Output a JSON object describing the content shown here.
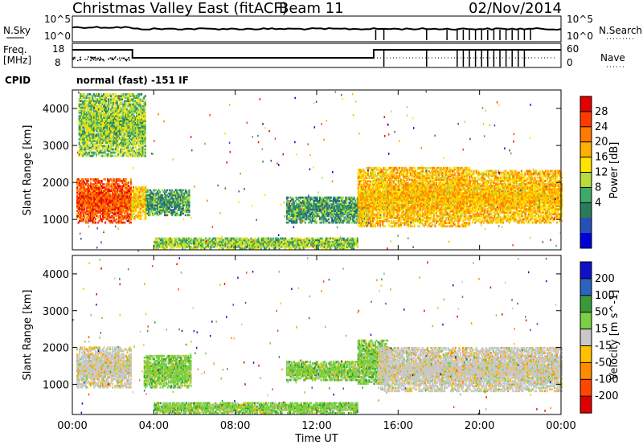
{
  "header": {
    "station": "Christmas Valley East (fitACF)",
    "beam": "Beam 11",
    "date": "02/Nov/2014"
  },
  "panels": {
    "nsky": {
      "label": "N.Sky",
      "tick_hi": "10^5",
      "tick_lo": "10^0"
    },
    "nsearch": {
      "label": "N.Search",
      "tick_hi": "10^5",
      "tick_lo": "10^0"
    },
    "freq": {
      "label_line1": "Freq.",
      "label_line2": "[MHz]",
      "tick_hi": "18",
      "tick_lo": "8"
    },
    "nave": {
      "label": "Nave",
      "tick_hi": "60",
      "tick_lo": "0"
    },
    "cpid": {
      "label": "CPID",
      "value": "normal (fast) -151 IF"
    }
  },
  "chart_data": [
    {
      "type": "heatmap",
      "title": "",
      "xlabel": "",
      "ylabel": "Slant Range [km]",
      "xlim": [
        "00:00",
        "24:00"
      ],
      "ylim": [
        180,
        4500
      ],
      "x_ticks": [
        "00:00",
        "04:00",
        "08:00",
        "12:00",
        "16:00",
        "20:00",
        "00:00"
      ],
      "y_ticks": [
        1000,
        2000,
        3000,
        4000
      ],
      "colorbar": {
        "label": "Power [dB]",
        "ticks": [
          "28",
          "24",
          "20",
          "16",
          "12",
          "8",
          "4"
        ],
        "colors": [
          "#e20000",
          "#ff3b00",
          "#ff7a00",
          "#ffb000",
          "#ffe400",
          "#b7dc3b",
          "#3fa96a",
          "#2a7b5a",
          "#264fb8",
          "#0000d8"
        ]
      },
      "regions": [
        {
          "t0": 0.2,
          "t1": 2.9,
          "r0": 900,
          "r1": 2100,
          "level": 24
        },
        {
          "t0": 2.9,
          "t1": 3.6,
          "r0": 1000,
          "r1": 1900,
          "level": 20
        },
        {
          "t0": 3.6,
          "t1": 5.7,
          "r0": 1100,
          "r1": 1800,
          "level": 8
        },
        {
          "t0": 0.3,
          "t1": 3.6,
          "r0": 2700,
          "r1": 4400,
          "level": 12
        },
        {
          "t0": 4.0,
          "t1": 14.0,
          "r0": 200,
          "r1": 500,
          "level": 12
        },
        {
          "t0": 10.5,
          "t1": 14.5,
          "r0": 900,
          "r1": 1600,
          "level": 8
        },
        {
          "t0": 14.0,
          "t1": 19.5,
          "r0": 800,
          "r1": 2400,
          "level": 20
        },
        {
          "t0": 19.5,
          "t1": 24.0,
          "r0": 900,
          "r1": 2300,
          "level": 20
        }
      ]
    },
    {
      "type": "heatmap",
      "title": "",
      "xlabel": "Time UT",
      "ylabel": "Slant Range [km]",
      "xlim": [
        "00:00",
        "24:00"
      ],
      "ylim": [
        180,
        4500
      ],
      "x_ticks": [
        "00:00",
        "04:00",
        "08:00",
        "12:00",
        "16:00",
        "20:00",
        "00:00"
      ],
      "y_ticks": [
        1000,
        2000,
        3000,
        4000
      ],
      "colorbar": {
        "label": "Velocity [m s^-1]",
        "ticks": [
          "200",
          "100",
          "50",
          "15",
          "-15",
          "-50",
          "-100",
          "-200"
        ],
        "colors": [
          "#1010c8",
          "#2a64c0",
          "#3a9a3a",
          "#7ad040",
          "#c8c8c8",
          "#ffc000",
          "#ff8c00",
          "#ff4500",
          "#e00000"
        ]
      },
      "regions": [
        {
          "t0": 0.2,
          "t1": 2.9,
          "r0": 900,
          "r1": 2000,
          "level": 0
        },
        {
          "t0": 3.5,
          "t1": 5.8,
          "r0": 900,
          "r1": 1800,
          "level": 50
        },
        {
          "t0": 4.0,
          "t1": 14.0,
          "r0": 200,
          "r1": 500,
          "level": 50
        },
        {
          "t0": 10.5,
          "t1": 14.0,
          "r0": 1100,
          "r1": 1600,
          "level": 50
        },
        {
          "t0": 14.0,
          "t1": 15.5,
          "r0": 1000,
          "r1": 2200,
          "level": 50
        },
        {
          "t0": 15.0,
          "t1": 24.0,
          "r0": 800,
          "r1": 2000,
          "level": 0
        }
      ]
    }
  ]
}
